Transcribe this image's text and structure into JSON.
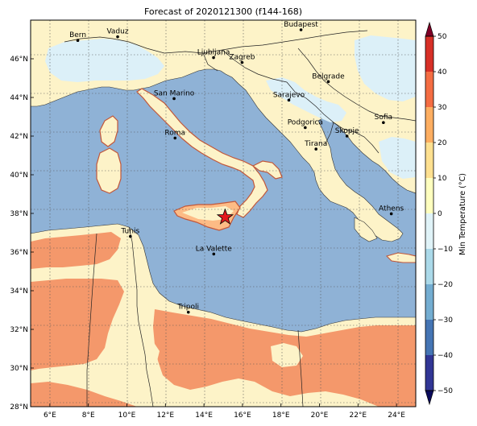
{
  "title": "Forecast of 2020121300 (f144-168)",
  "map": {
    "lon_range": [
      5,
      25
    ],
    "lat_range": [
      28,
      48
    ],
    "lon_ticks": [
      "6°E",
      "8°E",
      "10°E",
      "12°E",
      "14°E",
      "16°E",
      "18°E",
      "20°E",
      "22°E",
      "24°E"
    ],
    "lat_ticks": [
      "28°N",
      "30°N",
      "32°N",
      "34°N",
      "36°N",
      "38°N",
      "40°N",
      "42°N",
      "44°N",
      "46°N"
    ],
    "grid": true,
    "cities": [
      {
        "name": "Bern",
        "lon": 7.45,
        "lat": 46.95
      },
      {
        "name": "Vaduz",
        "lon": 9.52,
        "lat": 47.14
      },
      {
        "name": "Budapest",
        "lon": 19.04,
        "lat": 47.5
      },
      {
        "name": "Ljubljana",
        "lon": 14.5,
        "lat": 46.06
      },
      {
        "name": "Zagreb",
        "lon": 15.98,
        "lat": 45.81
      },
      {
        "name": "Belgrade",
        "lon": 20.46,
        "lat": 44.82
      },
      {
        "name": "San Marino",
        "lon": 12.45,
        "lat": 43.94
      },
      {
        "name": "Sarajevo",
        "lon": 18.41,
        "lat": 43.86
      },
      {
        "name": "Sofia",
        "lon": 23.32,
        "lat": 42.7
      },
      {
        "name": "Roma",
        "lon": 12.5,
        "lat": 41.9
      },
      {
        "name": "Podgorica",
        "lon": 19.26,
        "lat": 42.44
      },
      {
        "name": "Skopje",
        "lon": 21.43,
        "lat": 42.0
      },
      {
        "name": "Tirana",
        "lon": 19.82,
        "lat": 41.33
      },
      {
        "name": "Athens",
        "lon": 23.73,
        "lat": 37.98
      },
      {
        "name": "Tunis",
        "lon": 10.18,
        "lat": 36.81
      },
      {
        "name": "La Valette",
        "lon": 14.51,
        "lat": 35.9
      },
      {
        "name": "Tripoli",
        "lon": 13.19,
        "lat": 32.89
      }
    ],
    "marker": {
      "type": "star",
      "lon": 15.1,
      "lat": 37.8,
      "color": "#e41a1c"
    }
  },
  "colorbar": {
    "label": "Min Temperature (°C)",
    "ticks": [
      "50",
      "40",
      "30",
      "20",
      "10",
      "0",
      "−10",
      "−20",
      "−30",
      "−40",
      "−50"
    ],
    "colors_top_to_bottom": [
      "#a50026",
      "#d73027",
      "#f46d43",
      "#fdae61",
      "#fee090",
      "#ffffbf",
      "#e0f3f8",
      "#abd9e9",
      "#74add1",
      "#4575b4",
      "#313695",
      "#1a1a80"
    ]
  },
  "colors": {
    "sea": "#8fb2d6",
    "land_cool": "#fdf3c8",
    "land_warm": "#f4986b",
    "light_blue": "#dcf0f8",
    "orange_light": "#fdbb85"
  }
}
